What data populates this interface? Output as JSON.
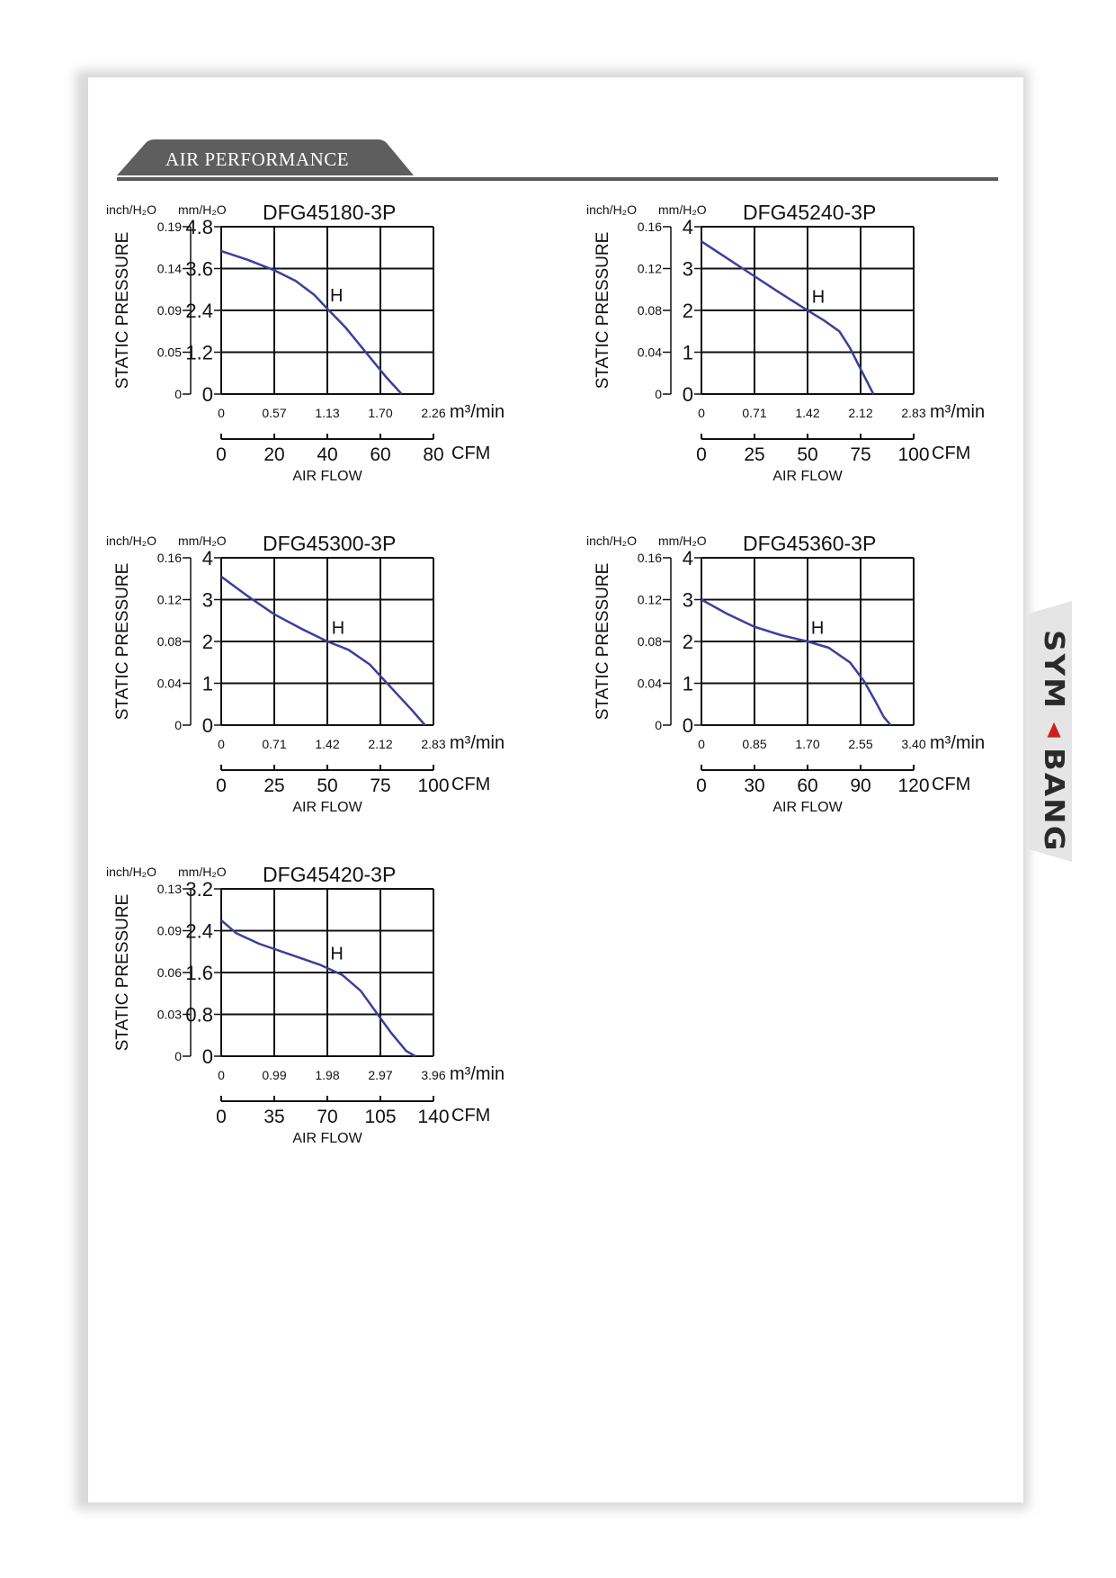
{
  "section": {
    "title": "AIR PERFORMANCE"
  },
  "brand": {
    "logo_text": "SYMBANG"
  },
  "colors": {
    "curve": "#3a3f9c",
    "grid": "#111111",
    "header_tab": "#5e5e5e",
    "side_tab": "#e5e5e5"
  },
  "chart_data": [
    {
      "type": "line",
      "title": "DFG45180-3P",
      "ylabel": "STATIC PRESSURE",
      "xlabel": "AIR FLOW",
      "y_unit_inch": "inch/H₂O",
      "y_unit_mm": "mm/H₂O",
      "x_unit_metric": "m³/min",
      "x_unit_cfm": "CFM",
      "y_ticks_mm": [
        "0",
        "1.2",
        "2.4",
        "3.6",
        "4.8"
      ],
      "y_ticks_inch": [
        "0",
        "0.05",
        "0.09",
        "0.14",
        "0.19"
      ],
      "x_ticks_metric": [
        "0",
        "0.57",
        "1.13",
        "1.70",
        "2.26"
      ],
      "x_ticks_cfm": [
        "0",
        "20",
        "40",
        "60",
        "80"
      ],
      "xlim": [
        0,
        80
      ],
      "ylim": [
        0,
        4.8
      ],
      "annotation": "H",
      "annotation_point": [
        41,
        2.5
      ],
      "series": [
        {
          "x": [
            0,
            10,
            20,
            28,
            35,
            40,
            47,
            55,
            62,
            68
          ],
          "y": [
            4.1,
            3.85,
            3.55,
            3.25,
            2.85,
            2.45,
            1.9,
            1.15,
            0.5,
            0
          ]
        }
      ]
    },
    {
      "type": "line",
      "title": "DFG45240-3P",
      "ylabel": "STATIC PRESSURE",
      "xlabel": "AIR FLOW",
      "y_unit_inch": "inch/H₂O",
      "y_unit_mm": "mm/H₂O",
      "x_unit_metric": "m³/min",
      "x_unit_cfm": "CFM",
      "y_ticks_mm": [
        "0",
        "1",
        "2",
        "3",
        "4"
      ],
      "y_ticks_inch": [
        "0",
        "0.04",
        "0.08",
        "0.12",
        "0.16"
      ],
      "x_ticks_metric": [
        "0",
        "0.71",
        "1.42",
        "2.12",
        "2.83"
      ],
      "x_ticks_cfm": [
        "0",
        "25",
        "50",
        "75",
        "100"
      ],
      "xlim": [
        0,
        100
      ],
      "ylim": [
        0,
        4
      ],
      "annotation": "H",
      "annotation_point": [
        52,
        2.05
      ],
      "series": [
        {
          "x": [
            0,
            12,
            24,
            36,
            50,
            58,
            65,
            70,
            74,
            78,
            81
          ],
          "y": [
            3.65,
            3.25,
            2.85,
            2.45,
            2.0,
            1.75,
            1.5,
            1.1,
            0.7,
            0.3,
            0
          ]
        }
      ]
    },
    {
      "type": "line",
      "title": "DFG45300-3P",
      "ylabel": "STATIC PRESSURE",
      "xlabel": "AIR FLOW",
      "y_unit_inch": "inch/H₂O",
      "y_unit_mm": "mm/H₂O",
      "x_unit_metric": "m³/min",
      "x_unit_cfm": "CFM",
      "y_ticks_mm": [
        "0",
        "1",
        "2",
        "3",
        "4"
      ],
      "y_ticks_inch": [
        "0",
        "0.04",
        "0.08",
        "0.12",
        "0.16"
      ],
      "x_ticks_metric": [
        "0",
        "0.71",
        "1.42",
        "2.12",
        "2.83"
      ],
      "x_ticks_cfm": [
        "0",
        "25",
        "50",
        "75",
        "100"
      ],
      "xlim": [
        0,
        100
      ],
      "ylim": [
        0,
        4
      ],
      "annotation": "H",
      "annotation_point": [
        52,
        2.05
      ],
      "series": [
        {
          "x": [
            0,
            12,
            25,
            38,
            50,
            60,
            70,
            80,
            90,
            96
          ],
          "y": [
            3.55,
            3.1,
            2.65,
            2.3,
            2.0,
            1.8,
            1.45,
            0.9,
            0.35,
            0
          ]
        }
      ]
    },
    {
      "type": "line",
      "title": "DFG45360-3P",
      "ylabel": "STATIC PRESSURE",
      "xlabel": "AIR FLOW",
      "y_unit_inch": "inch/H₂O",
      "y_unit_mm": "mm/H₂O",
      "x_unit_metric": "m³/min",
      "x_unit_cfm": "CFM",
      "y_ticks_mm": [
        "0",
        "1",
        "2",
        "3",
        "4"
      ],
      "y_ticks_inch": [
        "0",
        "0.04",
        "0.08",
        "0.12",
        "0.16"
      ],
      "x_ticks_metric": [
        "0",
        "0.85",
        "1.70",
        "2.55",
        "3.40"
      ],
      "x_ticks_cfm": [
        "0",
        "30",
        "60",
        "90",
        "120"
      ],
      "xlim": [
        0,
        120
      ],
      "ylim": [
        0,
        4
      ],
      "annotation": "H",
      "annotation_point": [
        62,
        2.05
      ],
      "series": [
        {
          "x": [
            0,
            15,
            30,
            45,
            60,
            72,
            84,
            92,
            98,
            103,
            107
          ],
          "y": [
            3.0,
            2.65,
            2.35,
            2.15,
            2.0,
            1.85,
            1.5,
            1.05,
            0.6,
            0.2,
            0
          ]
        }
      ]
    },
    {
      "type": "line",
      "title": "DFG45420-3P",
      "ylabel": "STATIC PRESSURE",
      "xlabel": "AIR FLOW",
      "y_unit_inch": "inch/H₂O",
      "y_unit_mm": "mm/H₂O",
      "x_unit_metric": "m³/min",
      "x_unit_cfm": "CFM",
      "y_ticks_mm": [
        "0",
        "0.8",
        "1.6",
        "2.4",
        "3.2"
      ],
      "y_ticks_inch": [
        "0",
        "0.03",
        "0.06",
        "0.09",
        "0.13"
      ],
      "x_ticks_metric": [
        "0",
        "0.99",
        "1.98",
        "2.97",
        "3.96"
      ],
      "x_ticks_cfm": [
        "0",
        "35",
        "70",
        "105",
        "140"
      ],
      "xlim": [
        0,
        140
      ],
      "ylim": [
        0,
        3.2
      ],
      "annotation": "H",
      "annotation_point": [
        72,
        1.75
      ],
      "series": [
        {
          "x": [
            0,
            10,
            25,
            45,
            65,
            80,
            92,
            102,
            112,
            122,
            128
          ],
          "y": [
            2.6,
            2.35,
            2.15,
            1.95,
            1.75,
            1.55,
            1.25,
            0.85,
            0.45,
            0.1,
            0
          ]
        }
      ]
    }
  ]
}
